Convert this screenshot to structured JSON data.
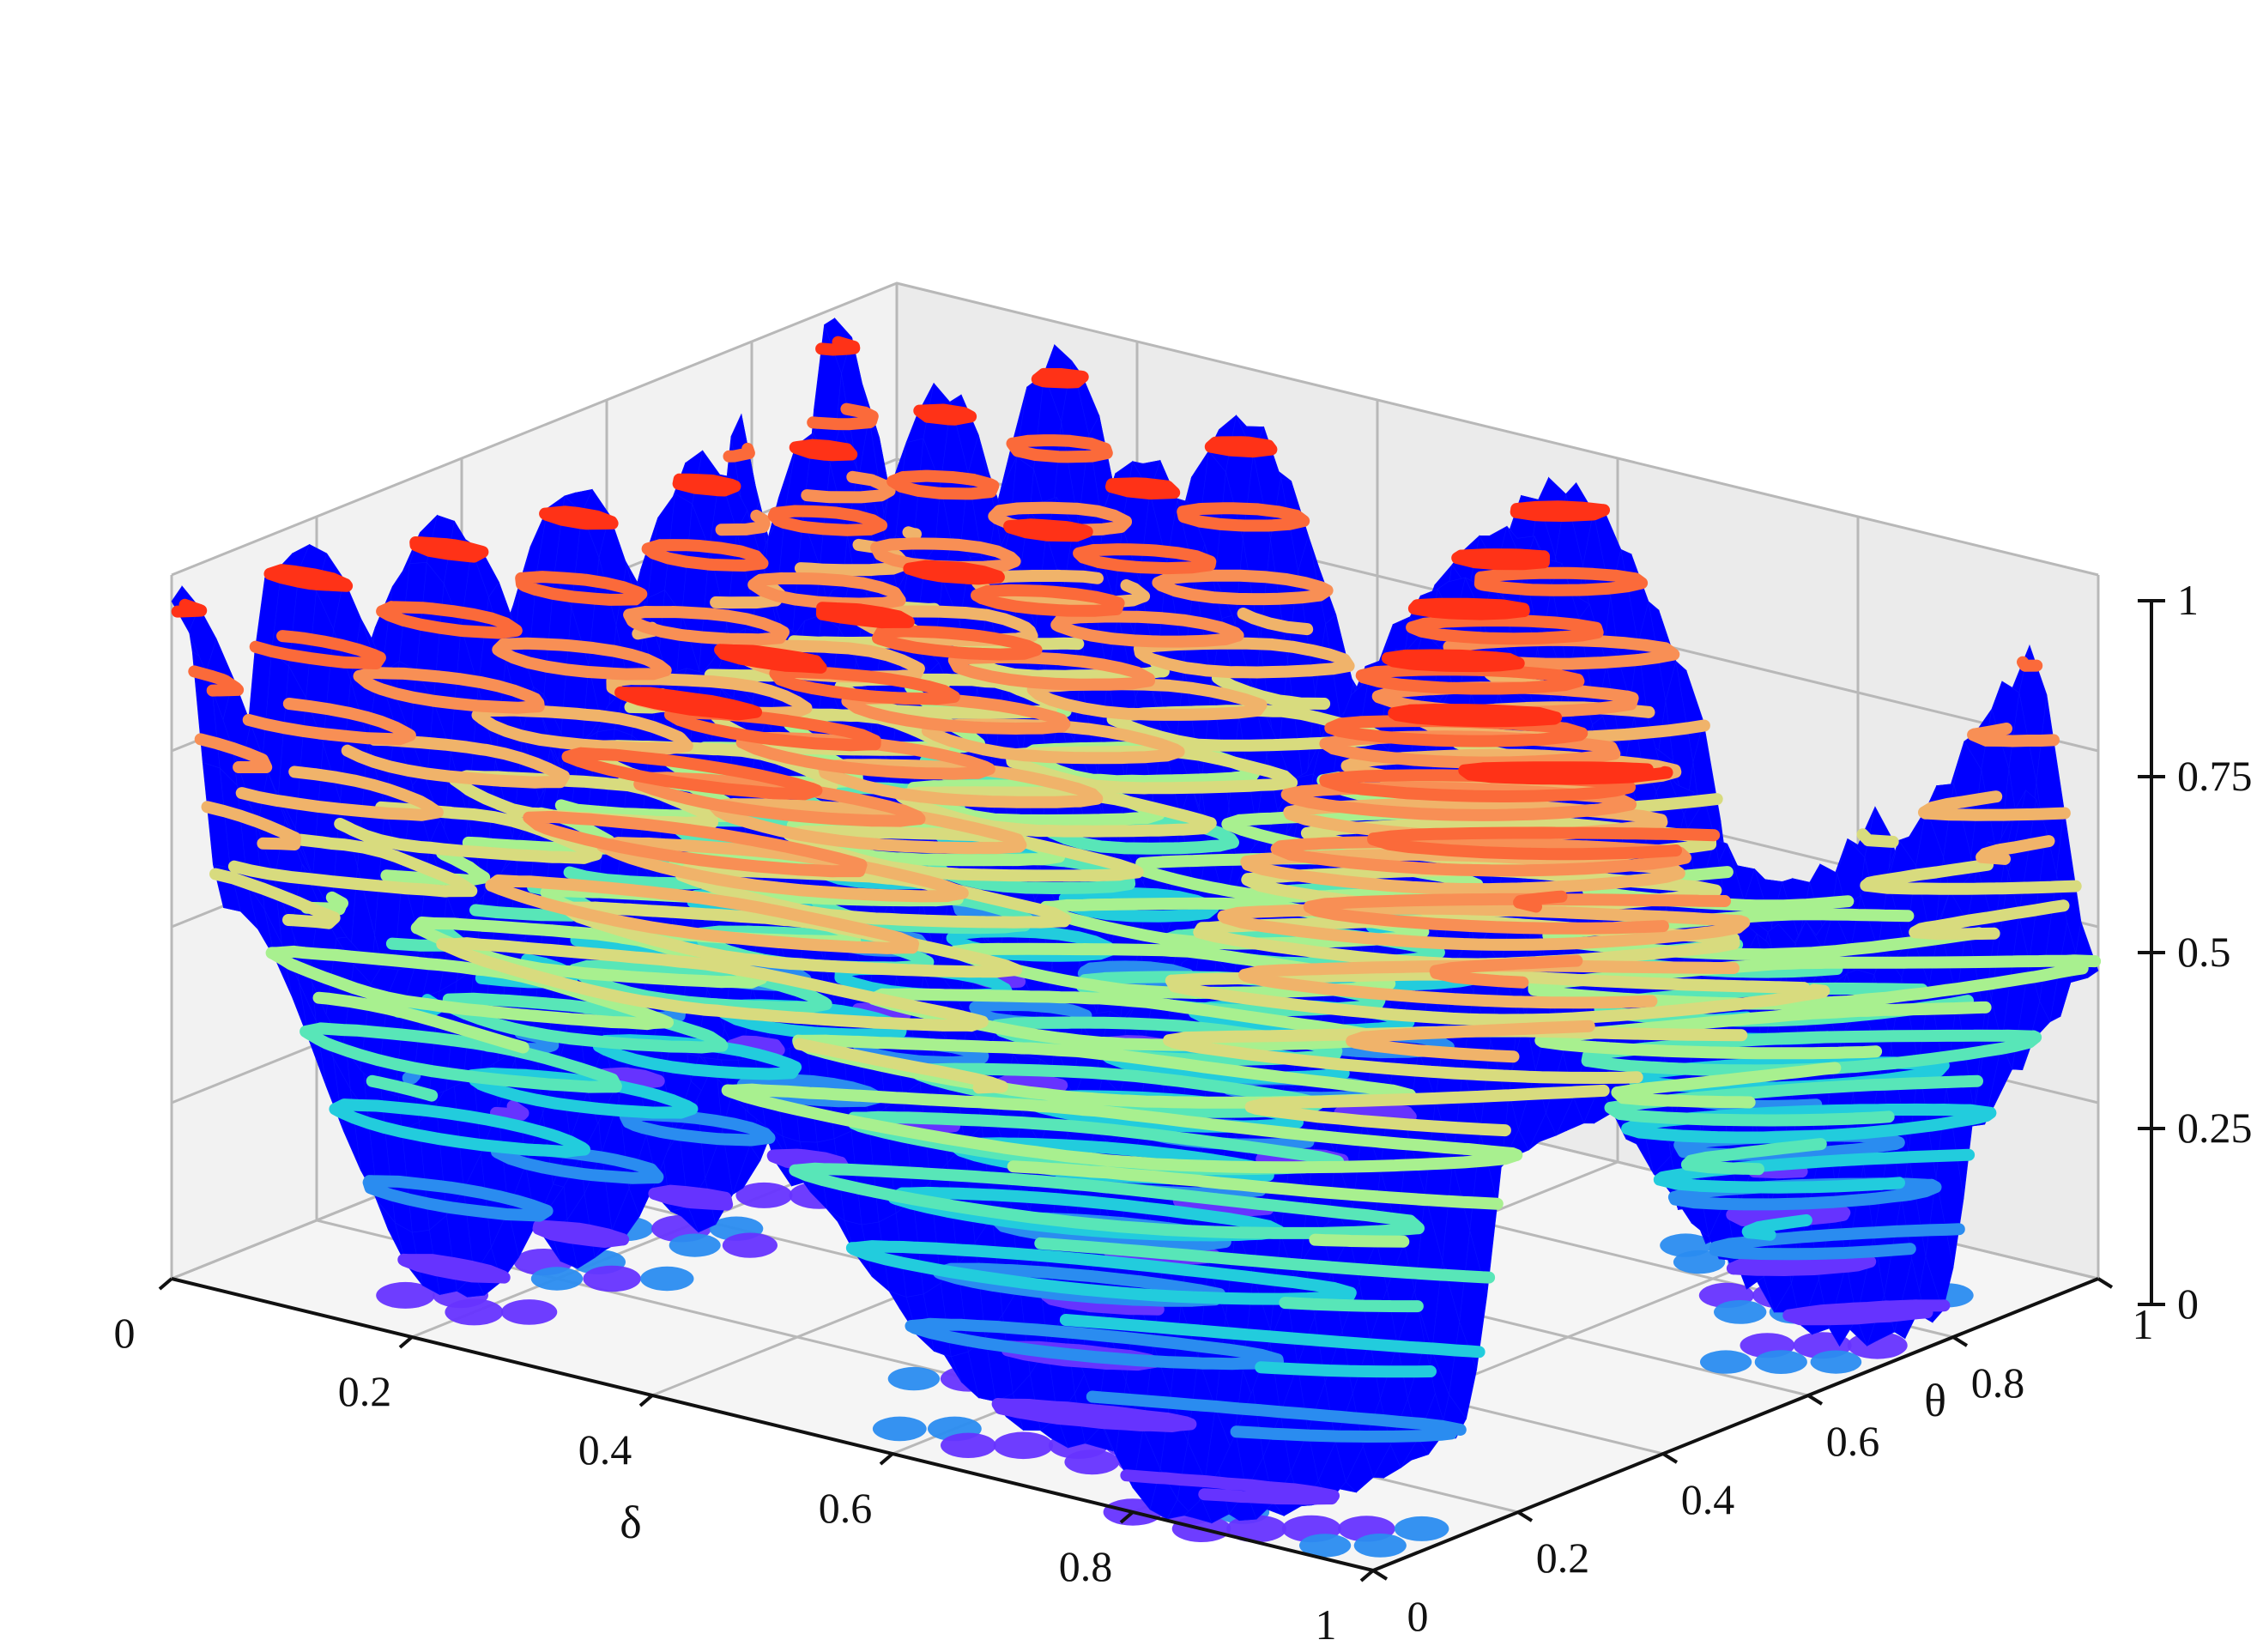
{
  "chart_data": {
    "type": "surface3d",
    "title": "",
    "xlabel": "δ",
    "ylabel": "θ",
    "zlabel": "",
    "xlim": [
      0,
      1
    ],
    "ylim": [
      0,
      1
    ],
    "zlim": [
      0,
      1
    ],
    "xticks": [
      "0",
      "0.2",
      "0.4",
      "0.6",
      "0.8",
      "1"
    ],
    "yticks": [
      "0",
      "0.2",
      "0.4",
      "0.6",
      "0.8",
      "1"
    ],
    "zticks": [
      "0",
      "0.25",
      "0.5",
      "0.75",
      "1"
    ],
    "grid": true,
    "legend": "none",
    "surface_color": "#0000ff",
    "colormap": "jet",
    "contour_offset_z": 0,
    "contour_levels": [
      0.05,
      0.15,
      0.25,
      0.35,
      0.45,
      0.55,
      0.65,
      0.75,
      0.85,
      0.95
    ],
    "contour_colors": [
      "#6633ff",
      "#2a8cf0",
      "#22ccdd",
      "#58e6b8",
      "#a8f08f",
      "#d8db7e",
      "#f0b36a",
      "#f88f55",
      "#fb6a3a",
      "#ff3217"
    ]
  }
}
